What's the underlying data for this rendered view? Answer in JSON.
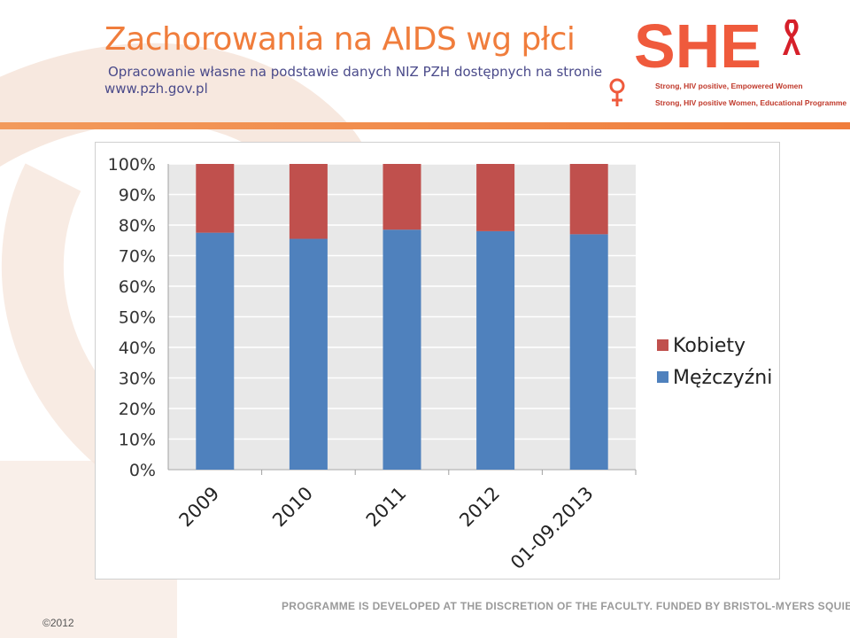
{
  "slide": {
    "title": "Zachorowania na AIDS wg płci",
    "subtitle_line1": "Opracowanie własne na podstawie danych NIZ PZH dostępnych na stronie",
    "subtitle_line2": "www.pzh.gov.pl",
    "footer": "PROGRAMME IS DEVELOPED AT THE DISCRETION OF THE FACULTY. FUNDED BY BRISTOL-MYERS SQUIBB",
    "copyright": "©2012"
  },
  "logo": {
    "wordmark": "SHE",
    "line1": "Strong, HIV positive, Empowered Women",
    "line2": "Strong, HIV positive Women, Educational Programme",
    "ribbon_icon": "red-ribbon-icon",
    "venus_icon": "venus-icon"
  },
  "colors": {
    "accent": "#f07d3c",
    "subtitle": "#4a4a8a",
    "kobiety": "#c0504d",
    "mezczyzni": "#4f81bd",
    "plot_bg": "#e8e8e8",
    "grid": "#ffffff"
  },
  "chart_data": {
    "type": "bar",
    "stacked": "percent",
    "categories": [
      "2009",
      "2010",
      "2011",
      "2012",
      "01-09.2013"
    ],
    "series": [
      {
        "name": "Mężczyźni",
        "values": [
          77.5,
          75.5,
          78.5,
          78,
          77
        ],
        "color": "#4f81bd"
      },
      {
        "name": "Kobiety",
        "values": [
          22.5,
          24.5,
          21.5,
          22,
          23
        ],
        "color": "#c0504d"
      }
    ],
    "yticks": [
      "0%",
      "10%",
      "20%",
      "30%",
      "40%",
      "50%",
      "60%",
      "70%",
      "80%",
      "90%",
      "100%"
    ],
    "ylim": [
      0,
      100
    ],
    "legend_position": "right",
    "grid": true
  }
}
